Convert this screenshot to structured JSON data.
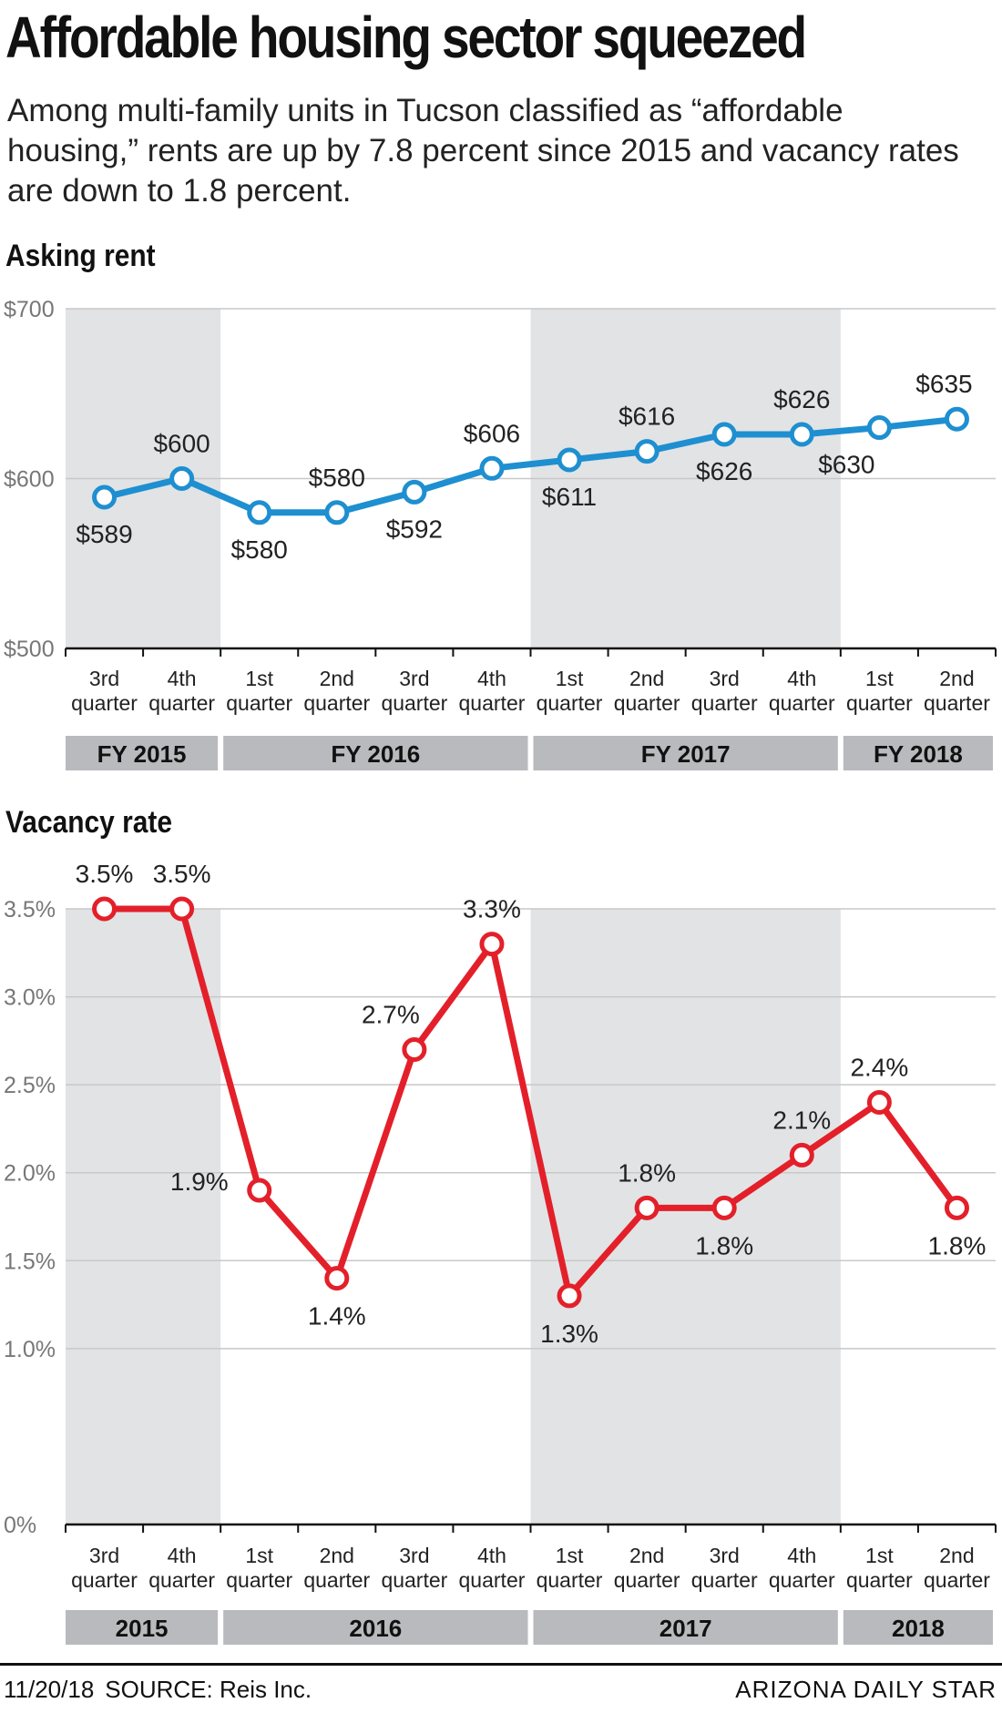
{
  "title": "Affordable housing sector squeezed",
  "subtitle": "Among multi-family units in Tucson classified as “affordable housing,” rents are up by 7.8 percent since 2015  and vacancy rates are down to 1.8 percent.",
  "colors": {
    "rent": "#1e8fd0",
    "vacancy": "#e3202a",
    "band": "#e2e3e5",
    "year_bar": "#b9babd",
    "grid": "#c8c8c8"
  },
  "chart_data": [
    {
      "type": "line",
      "title": "Asking rent",
      "x_ticks": [
        [
          "3rd",
          "quarter"
        ],
        [
          "4th",
          "quarter"
        ],
        [
          "1st",
          "quarter"
        ],
        [
          "2nd",
          "quarter"
        ],
        [
          "3rd",
          "quarter"
        ],
        [
          "4th",
          "quarter"
        ],
        [
          "1st",
          "quarter"
        ],
        [
          "2nd",
          "quarter"
        ],
        [
          "3rd",
          "quarter"
        ],
        [
          "4th",
          "quarter"
        ],
        [
          "1st",
          "quarter"
        ],
        [
          "2nd",
          "quarter"
        ]
      ],
      "values": [
        589,
        600,
        580,
        580,
        592,
        606,
        611,
        616,
        626,
        626,
        630,
        635
      ],
      "value_labels": [
        "$589",
        "$600",
        "$580",
        "$580",
        "$592",
        "$606",
        "$611",
        "$616",
        "$626",
        "$626",
        "$630",
        "$635"
      ],
      "ylim": [
        500,
        700
      ],
      "y_ticks": [
        {
          "value": 700,
          "label": "$700"
        },
        {
          "value": 600,
          "label": "$600"
        },
        {
          "value": 500,
          "label": "$500"
        }
      ],
      "years": [
        {
          "label": "FY 2015",
          "start": 0,
          "end": 1,
          "shaded": true
        },
        {
          "label": "FY 2016",
          "start": 2,
          "end": 5,
          "shaded": false
        },
        {
          "label": "FY 2017",
          "start": 6,
          "end": 9,
          "shaded": true
        },
        {
          "label": "FY 2018",
          "start": 10,
          "end": 11,
          "shaded": false
        }
      ],
      "grid": true
    },
    {
      "type": "line",
      "title": "Vacancy rate",
      "x_ticks": [
        [
          "3rd",
          "quarter"
        ],
        [
          "4th",
          "quarter"
        ],
        [
          "1st",
          "quarter"
        ],
        [
          "2nd",
          "quarter"
        ],
        [
          "3rd",
          "quarter"
        ],
        [
          "4th",
          "quarter"
        ],
        [
          "1st",
          "quarter"
        ],
        [
          "2nd",
          "quarter"
        ],
        [
          "3rd",
          "quarter"
        ],
        [
          "4th",
          "quarter"
        ],
        [
          "1st",
          "quarter"
        ],
        [
          "2nd",
          "quarter"
        ]
      ],
      "values": [
        3.5,
        3.5,
        1.9,
        1.4,
        2.7,
        3.3,
        1.3,
        1.8,
        1.8,
        2.1,
        2.4,
        1.8
      ],
      "value_labels": [
        "3.5%",
        "3.5%",
        "1.9%",
        "1.4%",
        "2.7%",
        "3.3%",
        "1.3%",
        "1.8%",
        "1.8%",
        "2.1%",
        "2.4%",
        "1.8%"
      ],
      "ylim": [
        0,
        3.5
      ],
      "y_ticks": [
        {
          "value": 3.5,
          "label": "3.5%"
        },
        {
          "value": 3.0,
          "label": "3.0%"
        },
        {
          "value": 2.5,
          "label": "2.5%"
        },
        {
          "value": 2.0,
          "label": "2.0%"
        },
        {
          "value": 1.5,
          "label": "1.5%"
        },
        {
          "value": 1.0,
          "label": "1.0%"
        },
        {
          "value": 0,
          "label": "0%"
        }
      ],
      "years": [
        {
          "label": "2015",
          "start": 0,
          "end": 1,
          "shaded": true
        },
        {
          "label": "2016",
          "start": 2,
          "end": 5,
          "shaded": false
        },
        {
          "label": "2017",
          "start": 6,
          "end": 9,
          "shaded": true
        },
        {
          "label": "2018",
          "start": 10,
          "end": 11,
          "shaded": false
        }
      ],
      "grid": true
    }
  ],
  "footer": {
    "date": "11/20/18",
    "source": "SOURCE:  Reis Inc.",
    "credit": "ARIZONA DAILY STAR"
  }
}
